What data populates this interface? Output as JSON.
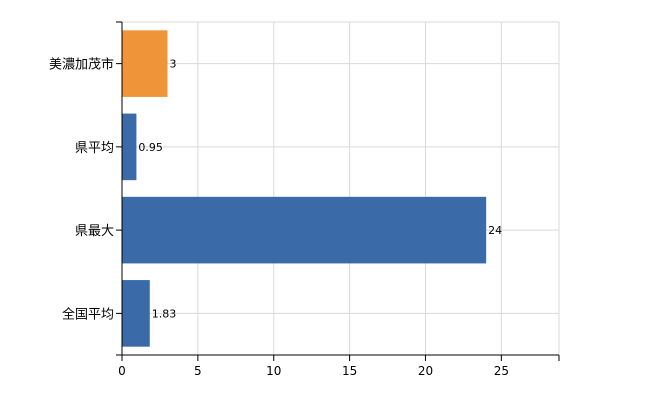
{
  "chart_data": {
    "type": "bar",
    "orientation": "horizontal",
    "title": "",
    "xlabel": "",
    "ylabel": "",
    "categories": [
      "美濃加茂市",
      "県平均",
      "県最大",
      "全国平均"
    ],
    "values": [
      3,
      0.95,
      24,
      1.83
    ],
    "data_labels": [
      "3",
      "0.95",
      "24",
      "1.83"
    ],
    "bar_colors": [
      "#f0943a",
      "#3a6aa8",
      "#3a6aa8",
      "#3a6aa8"
    ],
    "xlim": [
      0,
      28.8
    ],
    "x_ticks": [
      0,
      5,
      10,
      15,
      20,
      25
    ],
    "x_tick_labels": [
      "0",
      "5",
      "10",
      "15",
      "20",
      "25"
    ],
    "grid": true,
    "legend": "none"
  }
}
